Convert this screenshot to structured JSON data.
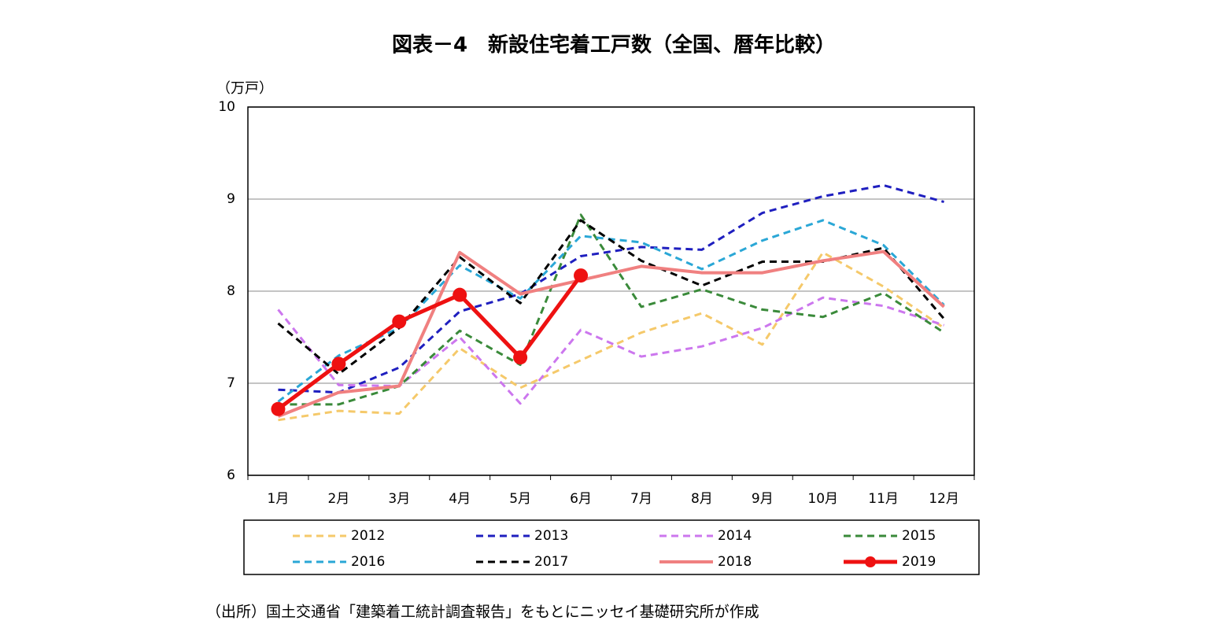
{
  "chart_data": {
    "type": "line",
    "title": "図表－4　新設住宅着工戸数（全国、暦年比較）",
    "y_axis_label": "（万戸）",
    "source": "（出所）国土交通省「建築着工統計調査報告」をもとにニッセイ基礎研究所が作成",
    "categories": [
      "1月",
      "2月",
      "3月",
      "4月",
      "5月",
      "6月",
      "7月",
      "8月",
      "9月",
      "10月",
      "11月",
      "12月"
    ],
    "ylim": [
      6,
      10
    ],
    "yticks": [
      6,
      7,
      8,
      9,
      10
    ],
    "grid": true,
    "series": [
      {
        "name": "2012",
        "color": "#f5c96a",
        "style": "dashed",
        "values": [
          6.6,
          6.7,
          6.67,
          7.38,
          6.95,
          7.25,
          7.55,
          7.76,
          7.42,
          8.42,
          8.05,
          7.6
        ]
      },
      {
        "name": "2013",
        "color": "#1f1fbf",
        "style": "dashed",
        "values": [
          6.93,
          6.9,
          7.17,
          7.78,
          7.97,
          8.38,
          8.48,
          8.45,
          8.85,
          9.03,
          9.15,
          8.97
        ]
      },
      {
        "name": "2014",
        "color": "#cc77ee",
        "style": "dashed",
        "values": [
          7.8,
          6.98,
          6.97,
          7.5,
          6.78,
          7.58,
          7.29,
          7.4,
          7.6,
          7.93,
          7.84,
          7.63
        ]
      },
      {
        "name": "2015",
        "color": "#3a8a3a",
        "style": "dashed",
        "values": [
          6.77,
          6.77,
          6.97,
          7.57,
          7.2,
          8.83,
          7.83,
          8.02,
          7.8,
          7.72,
          7.98,
          7.55
        ]
      },
      {
        "name": "2016",
        "color": "#2aa7d6",
        "style": "dashed",
        "values": [
          6.8,
          7.3,
          7.6,
          8.28,
          7.92,
          8.6,
          8.53,
          8.24,
          8.55,
          8.77,
          8.5,
          7.85
        ]
      },
      {
        "name": "2017",
        "color": "#000000",
        "style": "dashed",
        "values": [
          7.65,
          7.1,
          7.6,
          8.37,
          7.87,
          8.77,
          8.33,
          8.06,
          8.32,
          8.32,
          8.47,
          7.7
        ]
      },
      {
        "name": "2018",
        "color": "#f08080",
        "style": "solid",
        "values": [
          6.64,
          6.9,
          6.97,
          8.42,
          7.97,
          8.12,
          8.27,
          8.2,
          8.2,
          8.33,
          8.43,
          7.83
        ]
      },
      {
        "name": "2019",
        "color": "#ee1111",
        "style": "solid",
        "marker": true,
        "values": [
          6.72,
          7.21,
          7.67,
          7.96,
          7.28,
          8.17,
          null,
          null,
          null,
          null,
          null,
          null
        ]
      }
    ]
  }
}
